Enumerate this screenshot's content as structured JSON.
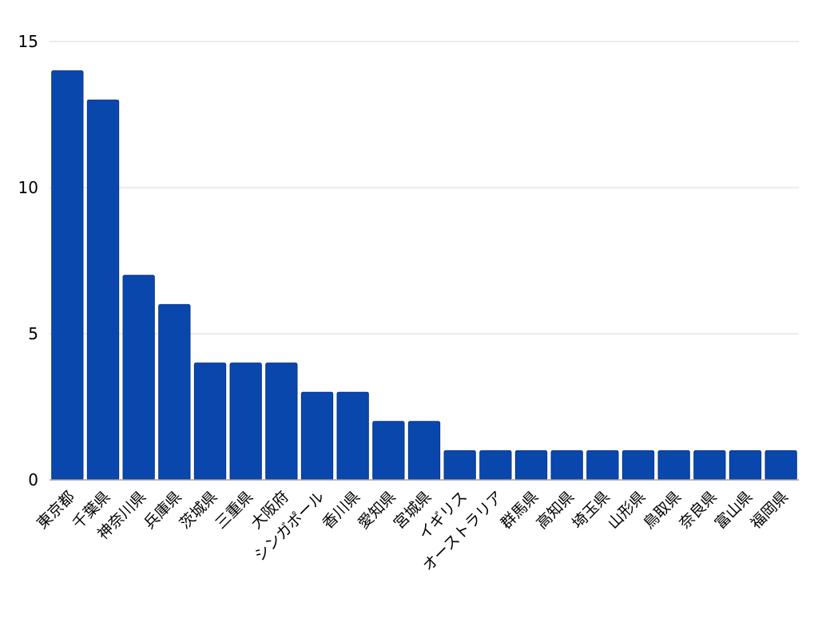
{
  "chart_data": {
    "type": "bar",
    "title": "",
    "xlabel": "",
    "ylabel": "",
    "categories": [
      "東京都",
      "千葉県",
      "神奈川県",
      "兵庫県",
      "茨城県",
      "三重県",
      "大阪府",
      "シンガポール",
      "香川県",
      "愛知県",
      "宮城県",
      "イギリス",
      "オーストラリア",
      "群馬県",
      "高知県",
      "埼玉県",
      "山形県",
      "鳥取県",
      "奈良県",
      "富山県",
      "福岡県"
    ],
    "values": [
      14,
      13,
      7,
      6,
      4,
      4,
      4,
      3,
      3,
      2,
      2,
      1,
      1,
      1,
      1,
      1,
      1,
      1,
      1,
      1,
      1
    ],
    "ylim": [
      0,
      15
    ],
    "yticks": [
      0,
      5,
      10,
      15
    ],
    "grid": true,
    "legend": "none",
    "colors": {
      "bar": "#0a47ad",
      "bar_edge": "#06358a",
      "grid": "#d9d9d9",
      "axis": "#9e9e9e"
    }
  }
}
